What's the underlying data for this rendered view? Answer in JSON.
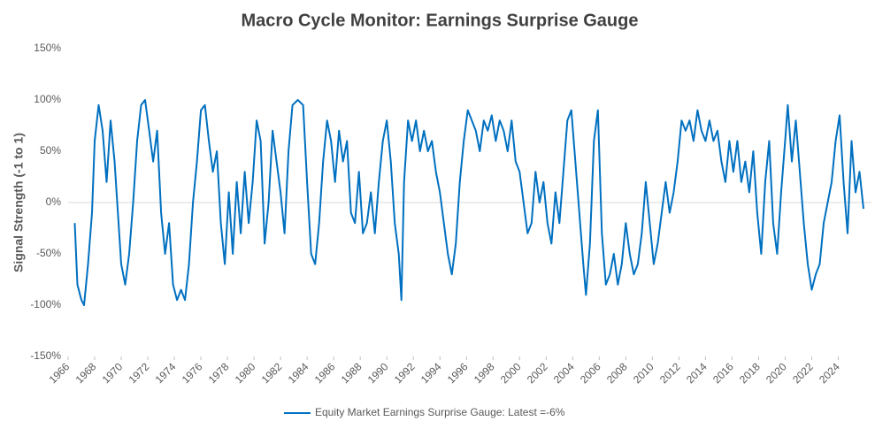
{
  "chart_data": {
    "type": "line",
    "title": "Macro Cycle Monitor: Earnings Surprise Gauge",
    "y_label": "Signal Strength (-1 to 1)",
    "xlim": [
      1966,
      2026.5
    ],
    "xticks": [
      1966,
      1968,
      1970,
      1972,
      1974,
      1976,
      1978,
      1980,
      1982,
      1984,
      1986,
      1988,
      1990,
      1992,
      1994,
      1996,
      1998,
      2000,
      2002,
      2004,
      2006,
      2008,
      2010,
      2012,
      2014,
      2016,
      2018,
      2020,
      2022,
      2024
    ],
    "ylim": [
      -150,
      150
    ],
    "yticks": [
      {
        "value": -150,
        "label": "-150%"
      },
      {
        "value": -100,
        "label": "-100%"
      },
      {
        "value": -50,
        "label": "-50%"
      },
      {
        "value": 0,
        "label": "0%"
      },
      {
        "value": 50,
        "label": "50%"
      },
      {
        "value": 100,
        "label": "100%"
      },
      {
        "value": 150,
        "label": "150%"
      }
    ],
    "zero_line": true,
    "legend": "bottom",
    "x": [
      1966.5,
      1966.7,
      1967.0,
      1967.2,
      1967.5,
      1967.8,
      1968.0,
      1968.3,
      1968.6,
      1968.9,
      1969.2,
      1969.5,
      1969.8,
      1970.0,
      1970.3,
      1970.6,
      1970.9,
      1971.2,
      1971.5,
      1971.8,
      1972.1,
      1972.4,
      1972.7,
      1973.0,
      1973.3,
      1973.6,
      1973.9,
      1974.2,
      1974.5,
      1974.8,
      1975.1,
      1975.4,
      1975.7,
      1976.0,
      1976.3,
      1976.6,
      1976.9,
      1977.2,
      1977.5,
      1977.8,
      1978.1,
      1978.4,
      1978.7,
      1979.0,
      1979.3,
      1979.6,
      1979.9,
      1980.2,
      1980.5,
      1980.8,
      1981.1,
      1981.4,
      1981.7,
      1982.0,
      1982.3,
      1982.6,
      1982.9,
      1983.3,
      1983.7,
      1984.0,
      1984.3,
      1984.6,
      1984.9,
      1985.2,
      1985.5,
      1985.8,
      1986.1,
      1986.4,
      1986.7,
      1987.0,
      1987.3,
      1987.6,
      1987.9,
      1988.2,
      1988.5,
      1988.8,
      1989.1,
      1989.4,
      1989.7,
      1990.0,
      1990.3,
      1990.6,
      1990.9,
      1991.1,
      1991.3,
      1991.6,
      1991.9,
      1992.2,
      1992.5,
      1992.8,
      1993.1,
      1993.4,
      1993.7,
      1994.0,
      1994.3,
      1994.6,
      1994.9,
      1995.2,
      1995.5,
      1995.8,
      1996.1,
      1996.4,
      1996.7,
      1997.0,
      1997.3,
      1997.6,
      1997.9,
      1998.2,
      1998.5,
      1998.8,
      1999.1,
      1999.4,
      1999.7,
      2000.0,
      2000.3,
      2000.6,
      2000.9,
      2001.2,
      2001.5,
      2001.8,
      2002.1,
      2002.4,
      2002.7,
      2003.0,
      2003.3,
      2003.6,
      2003.9,
      2004.2,
      2004.5,
      2004.8,
      2005.0,
      2005.3,
      2005.6,
      2005.9,
      2006.2,
      2006.5,
      2006.8,
      2007.1,
      2007.4,
      2007.7,
      2008.0,
      2008.3,
      2008.6,
      2008.9,
      2009.2,
      2009.5,
      2009.8,
      2010.1,
      2010.4,
      2010.7,
      2011.0,
      2011.3,
      2011.6,
      2011.9,
      2012.2,
      2012.5,
      2012.8,
      2013.1,
      2013.4,
      2013.7,
      2014.0,
      2014.3,
      2014.6,
      2014.9,
      2015.2,
      2015.5,
      2015.8,
      2016.1,
      2016.4,
      2016.7,
      2017.0,
      2017.3,
      2017.6,
      2017.9,
      2018.2,
      2018.5,
      2018.8,
      2019.1,
      2019.4,
      2019.7,
      2020.0,
      2020.2,
      2020.5,
      2020.8,
      2021.1,
      2021.4,
      2021.7,
      2022.0,
      2022.3,
      2022.6,
      2022.9,
      2023.2,
      2023.5,
      2023.8,
      2024.1,
      2024.4,
      2024.7,
      2025.0,
      2025.3,
      2025.6,
      2025.9
    ],
    "series": [
      {
        "name": "Equity Market Earnings Surprise Gauge: Latest =-6%",
        "color": "#0070c0",
        "values": [
          -20,
          -80,
          -95,
          -100,
          -60,
          -10,
          60,
          95,
          70,
          20,
          80,
          40,
          -20,
          -60,
          -80,
          -50,
          0,
          60,
          95,
          100,
          70,
          40,
          70,
          -10,
          -50,
          -20,
          -80,
          -95,
          -85,
          -95,
          -60,
          0,
          40,
          90,
          95,
          60,
          30,
          50,
          -20,
          -60,
          10,
          -50,
          20,
          -30,
          30,
          -20,
          20,
          80,
          60,
          -40,
          0,
          70,
          40,
          10,
          -30,
          50,
          95,
          100,
          95,
          20,
          -50,
          -60,
          -20,
          40,
          80,
          60,
          20,
          70,
          40,
          60,
          -10,
          -20,
          30,
          -30,
          -20,
          10,
          -30,
          20,
          60,
          80,
          40,
          -20,
          -50,
          -95,
          20,
          80,
          60,
          80,
          50,
          70,
          50,
          60,
          30,
          10,
          -20,
          -50,
          -70,
          -40,
          20,
          60,
          90,
          80,
          70,
          50,
          80,
          70,
          85,
          60,
          80,
          70,
          50,
          80,
          40,
          30,
          0,
          -30,
          -20,
          30,
          0,
          20,
          -20,
          -40,
          10,
          -20,
          30,
          80,
          90,
          40,
          -10,
          -60,
          -90,
          -40,
          60,
          90,
          -30,
          -80,
          -70,
          -50,
          -80,
          -60,
          -20,
          -50,
          -70,
          -60,
          -30,
          20,
          -20,
          -60,
          -40,
          -10,
          20,
          -10,
          10,
          40,
          80,
          70,
          80,
          60,
          90,
          70,
          60,
          80,
          60,
          70,
          40,
          20,
          60,
          30,
          60,
          20,
          40,
          10,
          50,
          -10,
          -50,
          20,
          60,
          -20,
          -50,
          10,
          60,
          95,
          40,
          80,
          30,
          -20,
          -60,
          -85,
          -70,
          -60,
          -20,
          0,
          20,
          60,
          85,
          20,
          -30,
          60,
          10,
          30,
          -6
        ]
      }
    ]
  }
}
